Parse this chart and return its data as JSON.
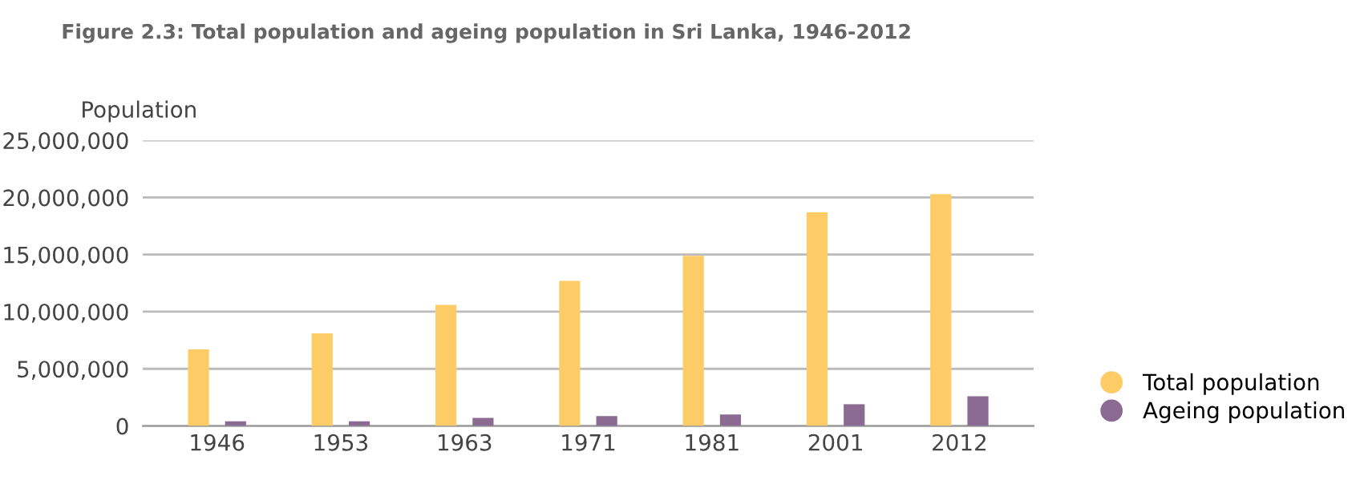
{
  "chart_data": {
    "type": "bar",
    "title": "Figure 2.3: Total population and ageing population in Sri Lanka, 1946-2012",
    "ylabel": "Population",
    "categories": [
      "1946",
      "1953",
      "1963",
      "1971",
      "1981",
      "2001",
      "2012"
    ],
    "series": [
      {
        "name": "Total population",
        "color": "#fdcc66",
        "values": [
          6700000,
          8100000,
          10600000,
          12700000,
          14900000,
          18700000,
          20300000
        ]
      },
      {
        "name": "Ageing population",
        "color": "#8c6b93",
        "values": [
          400000,
          400000,
          700000,
          860000,
          1000000,
          1900000,
          2600000
        ]
      }
    ],
    "ylim": [
      0,
      25000000
    ],
    "yticks": [
      {
        "value": 0,
        "label": "0"
      },
      {
        "value": 5000000,
        "label": "5,000,000"
      },
      {
        "value": 10000000,
        "label": "10,000,000"
      },
      {
        "value": 15000000,
        "label": "15,000,000"
      },
      {
        "value": 20000000,
        "label": "20,000,000"
      },
      {
        "value": 25000000,
        "label": "25,000,000"
      }
    ],
    "grid": "y",
    "legend": "bottom right"
  }
}
